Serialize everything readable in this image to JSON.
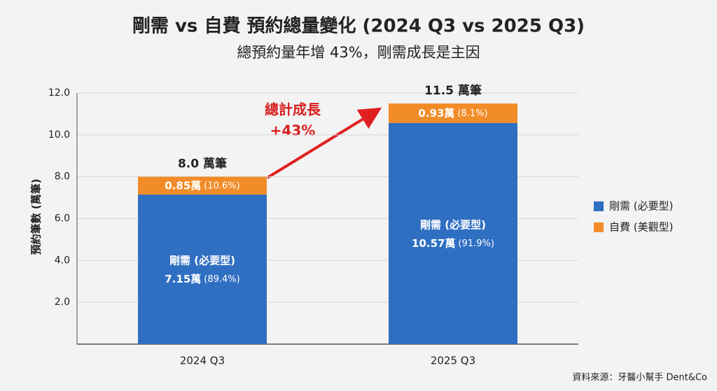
{
  "chart_data": {
    "type": "stacked_bar",
    "title": "剛需 vs 自費 預約總量變化 (2024 Q3 vs 2025 Q3)",
    "subtitle": "總預約量年增 43%，剛需成長是主因",
    "y_label": "預約筆數 (萬筆)",
    "categories": [
      "2024 Q3",
      "2025 Q3"
    ],
    "series": [
      {
        "name": "剛需 (必要型)",
        "color": "#2f6fc2",
        "values": [
          7.15,
          10.57
        ],
        "value_labels": [
          "7.15萬",
          "10.57萬"
        ],
        "share_labels": [
          "(89.4%)",
          "(91.9%)"
        ]
      },
      {
        "name": "自費 (美觀型)",
        "color": "#f28c28",
        "values": [
          0.85,
          0.93
        ],
        "value_labels": [
          "0.85萬",
          "0.93萬"
        ],
        "share_labels": [
          "(10.6%)",
          "(8.1%)"
        ]
      }
    ],
    "total_labels": [
      "8.0 萬筆",
      "11.5 萬筆"
    ],
    "annotation": [
      "總計成長",
      "+43%"
    ],
    "ylim": [
      0,
      12
    ],
    "yticks": [
      {
        "value": 2,
        "label": "2.0"
      },
      {
        "value": 4,
        "label": "4.0"
      },
      {
        "value": 6,
        "label": "6.0"
      },
      {
        "value": 8,
        "label": "8.0"
      },
      {
        "value": 10,
        "label": "10.0"
      },
      {
        "value": 12,
        "label": "12.0"
      }
    ],
    "grid": true,
    "legend": "right",
    "source": "資料來源：牙醫小幫手 Dent&Co"
  }
}
